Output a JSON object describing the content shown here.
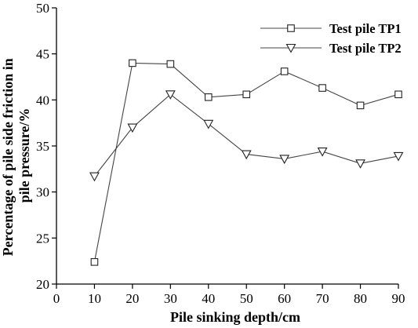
{
  "chart_data": {
    "type": "line",
    "title": "",
    "xlabel": "Pile sinking depth/cm",
    "ylabel_lines": [
      "Percentage of pile side friction in",
      "pile pressure/%"
    ],
    "xlim": [
      0,
      90
    ],
    "ylim": [
      20,
      50
    ],
    "xticks": [
      0,
      10,
      20,
      30,
      40,
      50,
      60,
      70,
      80,
      90
    ],
    "yticks": [
      20,
      25,
      30,
      35,
      40,
      45,
      50
    ],
    "grid": false,
    "legend_position": "top-right",
    "x": [
      10,
      20,
      30,
      40,
      50,
      60,
      70,
      80,
      90
    ],
    "series": [
      {
        "name": "Test pile TP1",
        "marker": "square",
        "values": [
          22.4,
          44.0,
          43.9,
          40.3,
          40.6,
          43.1,
          41.3,
          39.4,
          40.6
        ]
      },
      {
        "name": "Test pile TP2",
        "marker": "triangle-down",
        "values": [
          31.7,
          37.0,
          40.6,
          37.4,
          34.1,
          33.6,
          34.4,
          33.1,
          33.9
        ]
      }
    ]
  }
}
